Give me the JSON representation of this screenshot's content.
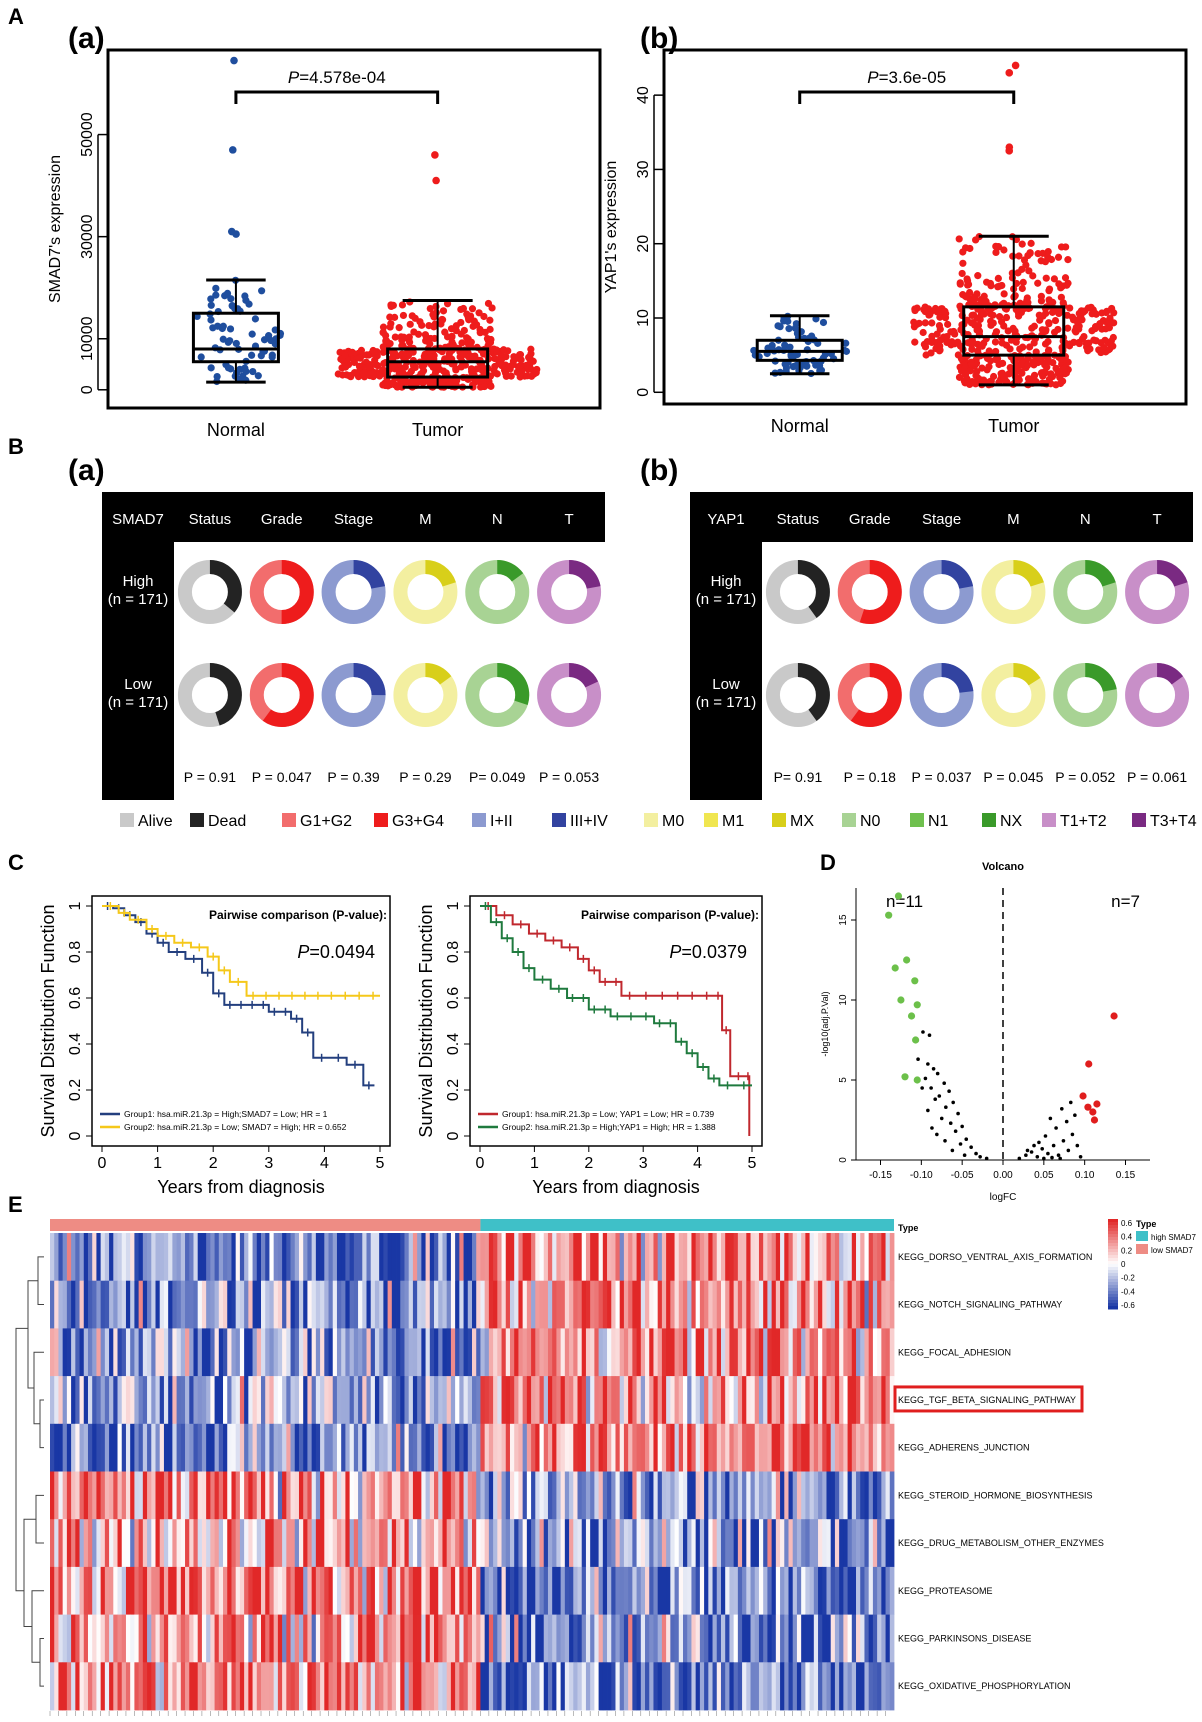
{
  "panel_letters": [
    "A",
    "B",
    "C",
    "D",
    "E"
  ],
  "sub_labels": {
    "a": "(a)",
    "b": "(b)"
  },
  "chart_data": [
    {
      "id": "A-a",
      "type": "scatter",
      "subtype": "beeswarm-boxplot",
      "ylabel": "SMAD7's expression",
      "categories": [
        "Normal",
        "Tumor"
      ],
      "yticks": [
        0,
        10000,
        30000,
        50000
      ],
      "ylim": [
        -2000,
        65000
      ],
      "pvalue_prefix": "P",
      "pvalue_text": "=4.578e-04",
      "box": [
        {
          "group": "Normal",
          "low": 1500,
          "q1": 5500,
          "median": 8000,
          "q3": 15000,
          "high": 21500
        },
        {
          "group": "Tumor",
          "low": 500,
          "q1": 2500,
          "median": 5500,
          "q3": 8000,
          "high": 17500
        }
      ],
      "outliers": [
        {
          "group": "Normal",
          "y": 64500
        },
        {
          "group": "Normal",
          "y": 47000
        },
        {
          "group": "Normal",
          "y": 31000
        },
        {
          "group": "Normal",
          "y": 30500
        },
        {
          "group": "Tumor",
          "y": 46000
        },
        {
          "group": "Tumor",
          "y": 41000
        }
      ],
      "colors": {
        "Normal": "#1f4e9e",
        "Tumor": "#ee1c1c"
      }
    },
    {
      "id": "A-b",
      "type": "scatter",
      "subtype": "beeswarm-boxplot",
      "ylabel": "YAP1's expression",
      "categories": [
        "Normal",
        "Tumor"
      ],
      "yticks": [
        0,
        10,
        20,
        30,
        40
      ],
      "ylim": [
        -0.5,
        45
      ],
      "pvalue_prefix": "P",
      "pvalue_text": "=3.6e-05",
      "box": [
        {
          "group": "Normal",
          "low": 2.5,
          "q1": 4.3,
          "median": 5.5,
          "q3": 7.0,
          "high": 10.3
        },
        {
          "group": "Tumor",
          "low": 1.0,
          "q1": 5.0,
          "median": 7.5,
          "q3": 11.5,
          "high": 21.0
        }
      ],
      "outliers": [
        {
          "group": "Tumor",
          "y": 44
        },
        {
          "group": "Tumor",
          "y": 43
        },
        {
          "group": "Tumor",
          "y": 33
        },
        {
          "group": "Tumor",
          "y": 32.5
        }
      ],
      "colors": {
        "Normal": "#1f4e9e",
        "Tumor": "#ee1c1c"
      }
    },
    {
      "id": "B-a",
      "type": "pie",
      "subtype": "donut-table",
      "gene": "SMAD7",
      "columns": [
        "Status",
        "Grade",
        "Stage",
        "M",
        "N",
        "T"
      ],
      "rows": [
        {
          "label": "High",
          "n": "(n = 171)"
        },
        {
          "label": "Low",
          "n": "(n = 171)"
        }
      ],
      "dark_fraction": [
        [
          0.36,
          0.5,
          0.22,
          0.2,
          0.15,
          0.22
        ],
        [
          0.45,
          0.6,
          0.25,
          0.15,
          0.3,
          0.18
        ]
      ],
      "pvalues": [
        "P = 0.91",
        "P = 0.047",
        "P = 0.39",
        "P = 0.29",
        "P= 0.049",
        "P = 0.053"
      ]
    },
    {
      "id": "B-b",
      "type": "pie",
      "subtype": "donut-table",
      "gene": "YAP1",
      "columns": [
        "Status",
        "Grade",
        "Stage",
        "M",
        "N",
        "T"
      ],
      "rows": [
        {
          "label": "High",
          "n": "(n = 171)"
        },
        {
          "label": "Low",
          "n": "(n = 171)"
        }
      ],
      "dark_fraction": [
        [
          0.4,
          0.55,
          0.22,
          0.2,
          0.2,
          0.2
        ],
        [
          0.4,
          0.6,
          0.23,
          0.16,
          0.22,
          0.15
        ]
      ],
      "pvalues": [
        "P= 0.91",
        "P = 0.18",
        "P = 0.037",
        "P = 0.045",
        "P = 0.052",
        "P = 0.061"
      ]
    },
    {
      "id": "C-left",
      "type": "line",
      "subtype": "kaplan-meier",
      "xlabel": "Years from diagnosis",
      "ylabel": "Survival Distribution Function",
      "xlim": [
        0,
        5
      ],
      "ylim": [
        0,
        1
      ],
      "xticks": [
        0,
        1,
        2,
        3,
        4,
        5
      ],
      "yticks": [
        0.0,
        0.2,
        0.4,
        0.6,
        0.8,
        1.0
      ],
      "comparison_title": "Pairwise comparison (P-value):",
      "pvalue_prefix": "P",
      "pvalue_text": "=0.0494",
      "series": [
        {
          "name": "Group1:  hsa.miR.21.3p = High;SMAD7 = Low;  HR = 1",
          "color": "#233f7e",
          "x": [
            0,
            0.2,
            0.4,
            0.6,
            0.8,
            1.0,
            1.2,
            1.5,
            1.8,
            2.0,
            2.2,
            2.6,
            3.0,
            3.4,
            3.6,
            3.8,
            4.4,
            4.7,
            4.9
          ],
          "y": [
            1.0,
            0.99,
            0.96,
            0.93,
            0.88,
            0.84,
            0.8,
            0.77,
            0.71,
            0.62,
            0.57,
            0.57,
            0.54,
            0.51,
            0.45,
            0.34,
            0.31,
            0.22,
            0.22
          ]
        },
        {
          "name": "Group2:  hsa.miR.21.3p = Low; SMAD7 = High;  HR = 0.652",
          "color": "#f5c81a",
          "x": [
            0,
            0.3,
            0.5,
            0.8,
            1.0,
            1.3,
            1.6,
            1.9,
            2.1,
            2.3,
            2.6,
            4.0,
            5.0
          ],
          "y": [
            1.0,
            0.97,
            0.94,
            0.9,
            0.87,
            0.84,
            0.82,
            0.78,
            0.72,
            0.67,
            0.61,
            0.61,
            0.61
          ]
        }
      ]
    },
    {
      "id": "C-right",
      "type": "line",
      "subtype": "kaplan-meier",
      "xlabel": "Years from diagnosis",
      "ylabel": "Survival Distribution Function",
      "xlim": [
        0,
        5
      ],
      "ylim": [
        0,
        1
      ],
      "xticks": [
        0,
        1,
        2,
        3,
        4,
        5
      ],
      "yticks": [
        0.0,
        0.2,
        0.4,
        0.6,
        0.8,
        1.0
      ],
      "comparison_title": "Pairwise comparison (P-value):",
      "pvalue_prefix": "P",
      "pvalue_text": "=0.0379",
      "series": [
        {
          "name": "Group1:  hsa.miR.21.3p = Low; YAP1 = Low;   HR = 0.739",
          "color": "#c0282e",
          "x": [
            0,
            0.3,
            0.6,
            0.9,
            1.2,
            1.5,
            1.8,
            2.0,
            2.2,
            2.6,
            3.5,
            4.3,
            4.45,
            4.6,
            4.9,
            4.95
          ],
          "y": [
            1.0,
            0.96,
            0.92,
            0.88,
            0.85,
            0.82,
            0.77,
            0.72,
            0.67,
            0.61,
            0.61,
            0.61,
            0.46,
            0.26,
            0.26,
            0.0
          ]
        },
        {
          "name": "Group2:  hsa.miR.21.3p = High;YAP1 = High;   HR = 1.388",
          "color": "#1f7a3e",
          "x": [
            0,
            0.2,
            0.4,
            0.6,
            0.8,
            1.0,
            1.3,
            1.6,
            2.0,
            2.4,
            2.9,
            3.2,
            3.6,
            3.8,
            4.0,
            4.2,
            4.4,
            5.0
          ],
          "y": [
            1.0,
            0.93,
            0.86,
            0.8,
            0.73,
            0.68,
            0.64,
            0.6,
            0.55,
            0.52,
            0.52,
            0.49,
            0.41,
            0.36,
            0.3,
            0.25,
            0.22,
            0.22
          ]
        }
      ]
    },
    {
      "id": "D",
      "type": "scatter",
      "subtype": "volcano",
      "title": "Volcano",
      "xlabel": "logFC",
      "ylabel": "-log10(adj.P.Val)",
      "xlim": [
        -0.18,
        0.18
      ],
      "ylim": [
        0,
        17
      ],
      "xticks": [
        -0.15,
        -0.1,
        -0.05,
        0,
        0.05,
        0.1,
        0.15
      ],
      "xtick_labels": [
        "-0.15",
        "-0.10",
        "-0.05",
        "0.00",
        "0.05",
        "0.10",
        "0.15"
      ],
      "yticks": [
        0,
        5,
        10,
        15
      ],
      "n_down": "n=11",
      "n_up": "n=7",
      "down_color": "#6cc04a",
      "up_color": "#e01e1e",
      "ns_color": "#000000",
      "down": [
        [
          -0.14,
          15.3
        ],
        [
          -0.128,
          16.5
        ],
        [
          -0.132,
          12.0
        ],
        [
          -0.118,
          12.5
        ],
        [
          -0.108,
          11.2
        ],
        [
          -0.125,
          10.0
        ],
        [
          -0.112,
          9.0
        ],
        [
          -0.105,
          9.7
        ],
        [
          -0.107,
          7.5
        ],
        [
          -0.12,
          5.2
        ],
        [
          -0.105,
          5.0
        ]
      ],
      "up": [
        [
          0.136,
          9.0
        ],
        [
          0.105,
          6.0
        ],
        [
          0.098,
          4.0
        ],
        [
          0.115,
          3.5
        ],
        [
          0.104,
          3.3
        ],
        [
          0.11,
          3.0
        ],
        [
          0.112,
          2.5
        ]
      ],
      "ns": [
        [
          -0.098,
          8.0
        ],
        [
          -0.09,
          7.8
        ],
        [
          -0.104,
          6.3
        ],
        [
          -0.092,
          6.0
        ],
        [
          -0.085,
          5.7
        ],
        [
          -0.08,
          5.4
        ],
        [
          -0.095,
          5.1
        ],
        [
          -0.072,
          4.8
        ],
        [
          -0.088,
          4.5
        ],
        [
          -0.066,
          4.3
        ],
        [
          -0.078,
          4.0
        ],
        [
          -0.083,
          3.8
        ],
        [
          -0.061,
          3.6
        ],
        [
          -0.07,
          3.3
        ],
        [
          -0.092,
          3.1
        ],
        [
          -0.055,
          2.9
        ],
        [
          -0.075,
          2.6
        ],
        [
          -0.064,
          2.3
        ],
        [
          -0.05,
          2.1
        ],
        [
          -0.058,
          1.8
        ],
        [
          -0.081,
          1.6
        ],
        [
          -0.045,
          1.3
        ],
        [
          -0.052,
          1.0
        ],
        [
          -0.039,
          0.8
        ],
        [
          -0.062,
          0.6
        ],
        [
          -0.033,
          0.4
        ],
        [
          -0.047,
          0.3
        ],
        [
          -0.028,
          0.2
        ],
        [
          -0.02,
          0.1
        ],
        [
          -0.071,
          1.2
        ],
        [
          -0.087,
          2.0
        ],
        [
          -0.099,
          4.5
        ],
        [
          0.02,
          0.1
        ],
        [
          0.028,
          0.3
        ],
        [
          0.035,
          0.5
        ],
        [
          0.042,
          0.2
        ],
        [
          0.048,
          0.7
        ],
        [
          0.055,
          0.4
        ],
        [
          0.062,
          0.9
        ],
        [
          0.068,
          0.3
        ],
        [
          0.074,
          1.2
        ],
        [
          0.08,
          0.6
        ],
        [
          0.085,
          1.6
        ],
        [
          0.091,
          0.9
        ],
        [
          0.052,
          1.5
        ],
        [
          0.065,
          2.0
        ],
        [
          0.078,
          2.4
        ],
        [
          0.088,
          2.8
        ],
        [
          0.058,
          2.6
        ],
        [
          0.072,
          3.2
        ],
        [
          0.044,
          1.1
        ],
        [
          0.095,
          0.2
        ],
        [
          0.038,
          0.9
        ],
        [
          0.083,
          3.6
        ],
        [
          0.06,
          0.15
        ],
        [
          0.03,
          0.6
        ],
        [
          0.07,
          0.1
        ],
        [
          0.05,
          0.1
        ]
      ]
    },
    {
      "id": "E",
      "type": "heatmap",
      "rows": [
        "KEGG_DORSO_VENTRAL_AXIS_FORMATION",
        "KEGG_NOTCH_SIGNALING_PATHWAY",
        "KEGG_FOCAL_ADHESION",
        "KEGG_TGF_BETA_SIGNALING_PATHWAY",
        "KEGG_ADHERENS_JUNCTION",
        "KEGG_STEROID_HORMONE_BIOSYNTHESIS",
        "KEGG_DRUG_METABOLISM_OTHER_ENZYMES",
        "KEGG_PROTEASOME",
        "KEGG_PARKINSONS_DISEASE",
        "KEGG_OXIDATIVE_PHOSPHORYLATION"
      ],
      "highlighted_row": "KEGG_TGF_BETA_SIGNALING_PATHWAY",
      "groups": [
        {
          "name": "low SMAD7",
          "color": "#ee8c84"
        },
        {
          "name": "high SMAD7",
          "color": "#3fc0c8"
        }
      ],
      "annotation_label": "Type",
      "legend_title": "Type",
      "color_ticks": [
        0.6,
        0.4,
        0.2,
        0,
        -0.2,
        -0.4,
        -0.6
      ],
      "color_range": [
        -0.6,
        0.6
      ],
      "row_bias": [
        [
          -0.34,
          0.34
        ],
        [
          -0.3,
          0.3
        ],
        [
          -0.28,
          0.28
        ],
        [
          -0.22,
          0.32
        ],
        [
          -0.3,
          0.3
        ],
        [
          0.28,
          -0.3
        ],
        [
          0.22,
          -0.26
        ],
        [
          0.34,
          -0.36
        ],
        [
          0.3,
          -0.32
        ],
        [
          0.32,
          -0.34
        ]
      ]
    }
  ],
  "legend_B": [
    {
      "label": "Alive",
      "color": "#c9c9c9"
    },
    {
      "label": "Dead",
      "color": "#232323"
    },
    {
      "label": "G1+G2",
      "color": "#f26d6d"
    },
    {
      "label": "G3+G4",
      "color": "#ee1c1c"
    },
    {
      "label": "I+II",
      "color": "#8c9ad0"
    },
    {
      "label": "III+IV",
      "color": "#3243a0"
    },
    {
      "label": "M0",
      "color": "#f3efa0"
    },
    {
      "label": "M1",
      "color": "#f0e650"
    },
    {
      "label": "MX",
      "color": "#d8cf1a"
    },
    {
      "label": "N0",
      "color": "#a8d394"
    },
    {
      "label": "N1",
      "color": "#6fc04e"
    },
    {
      "label": "NX",
      "color": "#3a9a2a"
    },
    {
      "label": "T1+T2",
      "color": "#c88fc8"
    },
    {
      "label": "T3+T4",
      "color": "#7a2a82"
    }
  ],
  "donut_colors": {
    "Status": [
      "#c9c9c9",
      "#232323"
    ],
    "Grade": [
      "#f26d6d",
      "#ee1c1c"
    ],
    "Stage": [
      "#8c9ad0",
      "#3243a0"
    ],
    "M": [
      "#f3efa0",
      "#d8cf1a"
    ],
    "N": [
      "#a8d394",
      "#3a9a2a"
    ],
    "T": [
      "#c88fc8",
      "#7a2a82"
    ]
  }
}
